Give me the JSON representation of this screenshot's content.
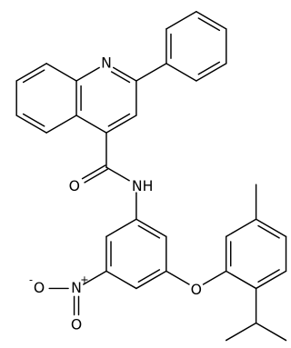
{
  "atoms": [
    {
      "label": "N"
    },
    {
      "label": "O"
    },
    {
      "label": "NH"
    },
    {
      "label": "N",
      "charge": "+"
    },
    {
      "label": "O",
      "charge": "-"
    },
    {
      "label": "O"
    },
    {
      "label": "O"
    }
  ]
}
